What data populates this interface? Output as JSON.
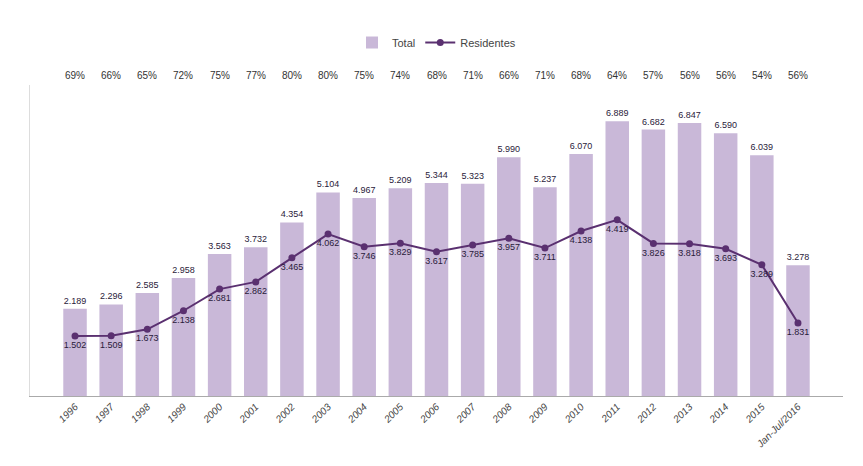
{
  "chart_data": {
    "type": "bar",
    "categories": [
      "1996",
      "1997",
      "1998",
      "1999",
      "2000",
      "2001",
      "2002",
      "2003",
      "2004",
      "2005",
      "2006",
      "2007",
      "2008",
      "2009",
      "2010",
      "2011",
      "2012",
      "2013",
      "2014",
      "2015",
      "Jan-Jul/2016"
    ],
    "series": [
      {
        "name": "Total",
        "type": "bar",
        "color": "#c9b8d8",
        "values": [
          2189,
          2296,
          2585,
          2958,
          3563,
          3732,
          4354,
          5104,
          4967,
          5209,
          5344,
          5323,
          5990,
          5237,
          6070,
          6889,
          6682,
          6847,
          6590,
          6039,
          3278
        ],
        "value_labels": [
          "2.189",
          "2.296",
          "2.585",
          "2.958",
          "3.563",
          "3.732",
          "4.354",
          "5.104",
          "4.967",
          "5.209",
          "5.344",
          "5.323",
          "5.990",
          "5.237",
          "6.070",
          "6.889",
          "6.682",
          "6.847",
          "6.590",
          "6.039",
          "3.278"
        ]
      },
      {
        "name": "Residentes",
        "type": "line",
        "color": "#5a3070",
        "marker": "circle",
        "values": [
          1502,
          1509,
          1673,
          2138,
          2681,
          2862,
          3465,
          4062,
          3746,
          3829,
          3617,
          3785,
          3957,
          3711,
          4138,
          4419,
          3826,
          3818,
          3693,
          3289,
          1831
        ],
        "value_labels": [
          "1.502",
          "1.509",
          "1.673",
          "2.138",
          "2.681",
          "2.862",
          "3.465",
          "4.062",
          "3.746",
          "3.829",
          "3.617",
          "3.785",
          "3.957",
          "3.711",
          "4.138",
          "4.419",
          "3.826",
          "3.818",
          "3.693",
          "3.289",
          "1.831"
        ]
      }
    ],
    "percentages": {
      "values": [
        69,
        66,
        65,
        72,
        75,
        77,
        80,
        80,
        75,
        74,
        68,
        71,
        66,
        71,
        68,
        64,
        57,
        56,
        56,
        54,
        56
      ],
      "value_labels": [
        "69%",
        "66%",
        "65%",
        "72%",
        "75%",
        "77%",
        "80%",
        "80%",
        "75%",
        "74%",
        "68%",
        "71%",
        "66%",
        "71%",
        "68%",
        "64%",
        "57%",
        "56%",
        "56%",
        "54%",
        "56%"
      ]
    },
    "ylim": [
      0,
      7800
    ],
    "data_labels": true,
    "tick_labels": "x",
    "grid": false,
    "legend": "top"
  }
}
